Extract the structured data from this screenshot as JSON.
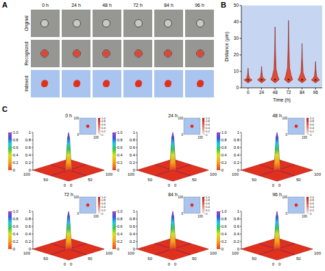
{
  "panel_labels": [
    "A",
    "B",
    "C"
  ],
  "panel_a": {
    "times": [
      "0 h",
      "24 h",
      "48 h",
      "72 h",
      "84 h",
      "96 h"
    ],
    "rows": [
      "Original",
      "Recognized",
      "Indexed"
    ]
  },
  "chart_data": [
    {
      "type": "violin",
      "x_label": "Time (h)",
      "y_label": "Distance (μm)",
      "categories": [
        "0",
        "24",
        "48",
        "72",
        "84",
        "96"
      ],
      "values": [
        4.8,
        4.9,
        5,
        5,
        4.9,
        4.8
      ],
      "min": [
        3,
        3,
        3,
        3,
        3,
        3
      ],
      "max": [
        12,
        13,
        37,
        41,
        27,
        16
      ],
      "color": "#e8472f",
      "ylim": [
        0,
        50
      ],
      "yticks": [
        0,
        10,
        20,
        30,
        40,
        50
      ]
    },
    {
      "type": "surface",
      "title": "0 h",
      "x": [
        0,
        40,
        44,
        47,
        50,
        53,
        56,
        60,
        100
      ],
      "values": [
        0,
        0,
        0.35,
        0.85,
        1,
        0.85,
        0.35,
        0,
        0
      ],
      "xlim": [
        0,
        100
      ],
      "ylim": [
        0,
        100
      ],
      "xticks": [
        0,
        50,
        100
      ],
      "yticks": [
        0,
        50,
        100
      ],
      "zlim": [
        0,
        1
      ],
      "zticks": [
        0,
        0.2,
        0.4,
        0.6,
        0.8,
        1
      ],
      "colorbar": {
        "range": [
          0,
          1
        ],
        "ticks": [
          0,
          0.2,
          0.4,
          0.6,
          0.8,
          {
            "value": 1,
            "label": "1.0"
          }
        ]
      },
      "inset": {
        "xlim": [
          0,
          100
        ],
        "ylim": [
          0,
          100
        ],
        "xticks": [
          100
        ],
        "yticks": [
          0,
          100
        ],
        "spot": [
          50,
          50
        ],
        "colorbar": {
          "range": [
            0,
            1
          ],
          "ticks": [
            0,
            0.2,
            0.4,
            0.6,
            0.8,
            {
              "value": 1,
              "label": "1.0"
            }
          ]
        }
      }
    },
    {
      "type": "surface",
      "title": "24 h",
      "x": [
        0,
        40,
        44,
        47,
        50,
        53,
        56,
        60,
        100
      ],
      "values": [
        0,
        0,
        0.4,
        0.88,
        1,
        0.86,
        0.38,
        0,
        0
      ],
      "xlim": [
        0,
        100
      ],
      "ylim": [
        0,
        100
      ],
      "xticks": [
        0,
        50,
        100
      ],
      "yticks": [
        0,
        50,
        100
      ],
      "zlim": [
        0,
        1
      ],
      "zticks": [
        0,
        0.2,
        0.4,
        0.6,
        0.8,
        1
      ],
      "colorbar": {
        "range": [
          0,
          1
        ],
        "ticks": [
          0,
          0.2,
          0.4,
          0.6,
          0.8,
          {
            "value": 1,
            "label": "1.0"
          }
        ]
      },
      "inset": {
        "xlim": [
          0,
          100
        ],
        "ylim": [
          0,
          100
        ],
        "xticks": [
          100
        ],
        "yticks": [
          0,
          100
        ],
        "spot": [
          50,
          50
        ],
        "colorbar": {
          "range": [
            0,
            1
          ],
          "ticks": [
            0,
            0.2,
            0.4,
            0.6,
            0.8,
            {
              "value": 1,
              "label": "1.0"
            }
          ]
        }
      }
    },
    {
      "type": "surface",
      "title": "48 h",
      "x": [
        0,
        40,
        44,
        47,
        50,
        53,
        56,
        60,
        100
      ],
      "values": [
        0,
        0,
        0.38,
        0.87,
        1,
        0.87,
        0.36,
        0,
        0
      ],
      "xlim": [
        0,
        100
      ],
      "ylim": [
        0,
        100
      ],
      "xticks": [
        0,
        50,
        100
      ],
      "yticks": [
        0,
        50,
        100
      ],
      "zlim": [
        0,
        1
      ],
      "zticks": [
        0,
        0.2,
        0.4,
        0.6,
        0.8,
        1
      ],
      "colorbar": {
        "range": [
          0,
          1
        ],
        "ticks": [
          0,
          0.2,
          0.4,
          0.6,
          0.8,
          {
            "value": 1,
            "label": "1.0"
          }
        ]
      },
      "inset": {
        "xlim": [
          0,
          100
        ],
        "ylim": [
          0,
          100
        ],
        "xticks": [
          100
        ],
        "yticks": [
          0,
          100
        ],
        "spot": [
          50,
          50
        ],
        "colorbar": {
          "range": [
            0,
            1
          ],
          "ticks": [
            0,
            0.2,
            0.4,
            0.6,
            0.8,
            {
              "value": 1,
              "label": "1.0"
            }
          ]
        }
      }
    },
    {
      "type": "surface",
      "title": "72 h",
      "x": [
        0,
        40,
        44,
        47,
        50,
        53,
        56,
        60,
        100
      ],
      "values": [
        0,
        0,
        0.36,
        0.84,
        1,
        0.86,
        0.4,
        0,
        0
      ],
      "xlim": [
        0,
        100
      ],
      "ylim": [
        0,
        100
      ],
      "xticks": [
        0,
        50,
        100
      ],
      "yticks": [
        0,
        50,
        100
      ],
      "zlim": [
        0,
        1
      ],
      "zticks": [
        0,
        0.2,
        0.4,
        0.6,
        0.8,
        1
      ],
      "colorbar": {
        "range": [
          0,
          1
        ],
        "ticks": [
          0,
          0.2,
          0.4,
          0.6,
          0.8,
          {
            "value": 1,
            "label": "1.0"
          }
        ]
      },
      "inset": {
        "xlim": [
          0,
          100
        ],
        "ylim": [
          0,
          100
        ],
        "xticks": [
          100
        ],
        "yticks": [
          0,
          100
        ],
        "spot": [
          50,
          50
        ],
        "colorbar": {
          "range": [
            0,
            1
          ],
          "ticks": [
            0,
            0.2,
            0.4,
            0.6,
            0.8,
            {
              "value": 1,
              "label": "1.0"
            }
          ]
        }
      }
    },
    {
      "type": "surface",
      "title": "84 h",
      "x": [
        0,
        40,
        44,
        47,
        50,
        53,
        56,
        60,
        100
      ],
      "values": [
        0,
        0,
        0.37,
        0.86,
        1,
        0.85,
        0.37,
        0,
        0
      ],
      "xlim": [
        0,
        100
      ],
      "ylim": [
        0,
        100
      ],
      "xticks": [
        0,
        50,
        100
      ],
      "yticks": [
        0,
        50,
        100
      ],
      "zlim": [
        0,
        1
      ],
      "zticks": [
        0,
        0.2,
        0.4,
        0.6,
        0.8,
        1
      ],
      "colorbar": {
        "range": [
          0,
          1
        ],
        "ticks": [
          0,
          0.2,
          0.4,
          0.6,
          0.8,
          {
            "value": 1,
            "label": "1.0"
          }
        ]
      },
      "inset": {
        "xlim": [
          0,
          100
        ],
        "ylim": [
          0,
          100
        ],
        "xticks": [
          100
        ],
        "yticks": [
          0,
          100
        ],
        "spot": [
          50,
          50
        ],
        "colorbar": {
          "range": [
            0,
            1
          ],
          "ticks": [
            0,
            0.2,
            0.4,
            0.6,
            0.8,
            {
              "value": 1,
              "label": "1.0"
            }
          ]
        }
      }
    },
    {
      "type": "surface",
      "title": "96 h",
      "x": [
        0,
        40,
        44,
        47,
        50,
        53,
        56,
        60,
        100
      ],
      "values": [
        0,
        0,
        0.35,
        0.85,
        1,
        0.84,
        0.36,
        0,
        0
      ],
      "xlim": [
        0,
        100
      ],
      "ylim": [
        0,
        100
      ],
      "xticks": [
        0,
        50,
        100
      ],
      "yticks": [
        0,
        50,
        100
      ],
      "zlim": [
        0,
        1
      ],
      "zticks": [
        0,
        0.2,
        0.4,
        0.6,
        0.8,
        1
      ],
      "colorbar": {
        "range": [
          0,
          1
        ],
        "ticks": [
          0,
          0.2,
          0.4,
          0.6,
          0.8,
          {
            "value": 1,
            "label": "1.0"
          }
        ]
      },
      "inset": {
        "xlim": [
          0,
          100
        ],
        "ylim": [
          0,
          100
        ],
        "xticks": [
          100
        ],
        "yticks": [
          0,
          100
        ],
        "spot": [
          50,
          50
        ],
        "colorbar": {
          "range": [
            0,
            1
          ],
          "ticks": [
            0,
            0.2,
            0.4,
            0.6,
            0.8,
            {
              "value": 1,
              "label": "1.0"
            }
          ]
        }
      }
    }
  ]
}
